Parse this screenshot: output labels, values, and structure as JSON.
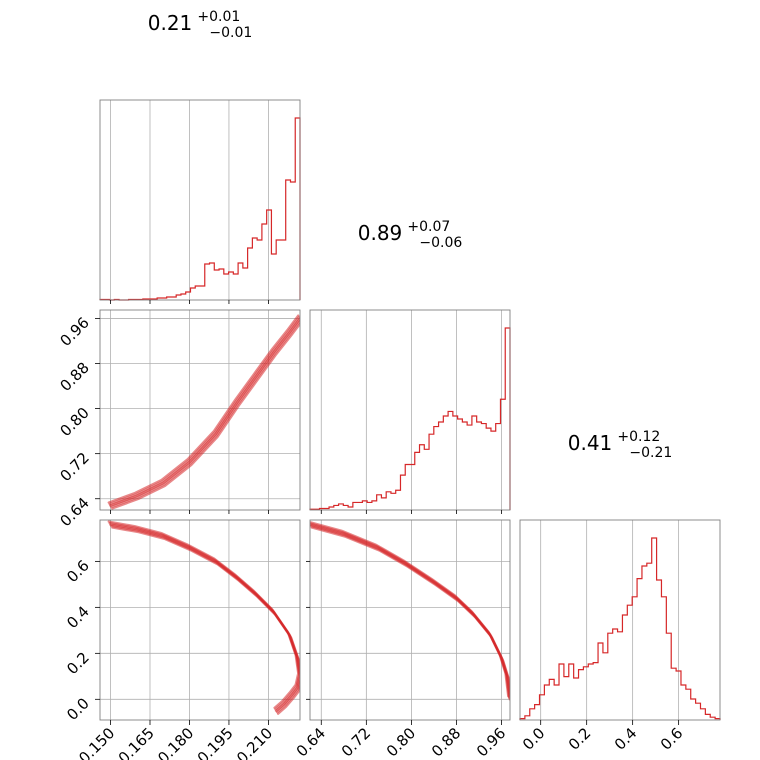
{
  "colors": {
    "series": "#d62728",
    "frame": "#808080",
    "grid": "#b0b0b0"
  },
  "titles": [
    {
      "value": "0.21",
      "plus": "+0.01",
      "minus": "−0.01"
    },
    {
      "value": "0.89",
      "plus": "+0.07",
      "minus": "−0.06"
    },
    {
      "value": "0.41",
      "plus": "+0.12",
      "minus": "−0.21"
    }
  ],
  "chart_data": {
    "type": "corner",
    "grid": true,
    "parameters": [
      {
        "range": [
          0.146,
          0.222
        ],
        "ticks": [
          0.15,
          0.165,
          0.18,
          0.195,
          0.21
        ],
        "tick_labels": [
          "0.150",
          "0.165",
          "0.180",
          "0.195",
          "0.210"
        ]
      },
      {
        "range": [
          0.62,
          0.975
        ],
        "ticks": [
          0.64,
          0.72,
          0.8,
          0.88,
          0.96
        ],
        "tick_labels": [
          "0.64",
          "0.72",
          "0.80",
          "0.88",
          "0.96"
        ]
      },
      {
        "range": [
          -0.09,
          0.78
        ],
        "ticks": [
          0.0,
          0.2,
          0.4,
          0.6
        ],
        "tick_labels": [
          "0.0",
          "0.2",
          "0.4",
          "0.6"
        ]
      }
    ],
    "histograms": [
      {
        "param": 0,
        "counts": [
          0.5,
          0.5,
          0,
          0.5,
          0,
          0,
          0.5,
          0.5,
          0.5,
          1,
          1,
          1,
          2,
          2,
          3,
          3,
          5,
          6,
          8,
          12,
          14,
          14,
          36,
          37,
          30,
          31,
          26,
          28,
          26,
          37,
          32,
          52,
          62,
          60,
          76,
          90,
          46,
          60,
          60,
          120,
          118,
          182
        ]
      },
      {
        "param": 1,
        "counts": [
          0.5,
          0.5,
          1,
          1,
          2,
          3,
          4,
          3,
          2,
          5,
          5,
          6,
          5,
          6,
          10,
          8,
          12,
          11,
          13,
          23,
          30,
          30,
          38,
          43,
          40,
          50,
          55,
          58,
          62,
          65,
          62,
          60,
          58,
          56,
          62,
          58,
          57,
          54,
          52,
          57,
          73,
          120
        ]
      },
      {
        "param": 2,
        "counts": [
          1,
          3,
          8,
          11,
          18,
          25,
          29,
          25,
          40,
          31,
          40,
          30,
          36,
          38,
          40,
          41,
          55,
          48,
          62,
          65,
          63,
          75,
          82,
          88,
          101,
          110,
          112,
          130,
          100,
          88,
          62,
          37,
          35,
          25,
          22,
          15,
          12,
          8,
          4,
          2,
          1
        ]
      }
    ],
    "curves": [
      {
        "x_param": 0,
        "y_param": 1,
        "points": [
          [
            0.15,
            0.628
          ],
          [
            0.16,
            0.645
          ],
          [
            0.17,
            0.668
          ],
          [
            0.18,
            0.705
          ],
          [
            0.19,
            0.755
          ],
          [
            0.198,
            0.81
          ],
          [
            0.205,
            0.855
          ],
          [
            0.212,
            0.9
          ],
          [
            0.218,
            0.935
          ],
          [
            0.222,
            0.96
          ]
        ]
      },
      {
        "x_param": 0,
        "y_param": 2,
        "points": [
          [
            0.15,
            0.76
          ],
          [
            0.16,
            0.74
          ],
          [
            0.17,
            0.71
          ],
          [
            0.18,
            0.66
          ],
          [
            0.19,
            0.6
          ],
          [
            0.198,
            0.53
          ],
          [
            0.205,
            0.46
          ],
          [
            0.212,
            0.38
          ],
          [
            0.218,
            0.28
          ],
          [
            0.221,
            0.18
          ],
          [
            0.222,
            0.1
          ],
          [
            0.221,
            0.05
          ],
          [
            0.219,
            0.02
          ],
          [
            0.216,
            -0.02
          ],
          [
            0.213,
            -0.05
          ]
        ]
      },
      {
        "x_param": 1,
        "y_param": 2,
        "points": [
          [
            0.62,
            0.76
          ],
          [
            0.68,
            0.72
          ],
          [
            0.74,
            0.66
          ],
          [
            0.79,
            0.59
          ],
          [
            0.84,
            0.51
          ],
          [
            0.88,
            0.44
          ],
          [
            0.91,
            0.37
          ],
          [
            0.94,
            0.28
          ],
          [
            0.96,
            0.18
          ],
          [
            0.97,
            0.1
          ],
          [
            0.975,
            0.0
          ]
        ]
      }
    ]
  }
}
